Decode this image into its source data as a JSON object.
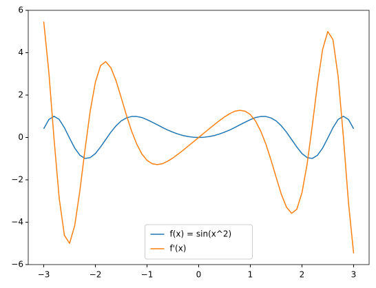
{
  "chart_data": {
    "type": "line",
    "x": [
      -3.0,
      -2.9,
      -2.8,
      -2.7,
      -2.6,
      -2.5,
      -2.4,
      -2.3,
      -2.2,
      -2.1,
      -2.0,
      -1.9,
      -1.8,
      -1.7,
      -1.6,
      -1.5,
      -1.4,
      -1.3,
      -1.2,
      -1.1,
      -1.0,
      -0.9,
      -0.8,
      -0.7,
      -0.6,
      -0.5,
      -0.4,
      -0.3,
      -0.2,
      -0.1,
      0,
      0.1,
      0.2,
      0.3,
      0.4,
      0.5,
      0.6,
      0.7,
      0.8,
      0.9,
      1.0,
      1.1,
      1.2,
      1.3,
      1.4,
      1.5,
      1.6,
      1.7,
      1.8,
      1.9,
      2.0,
      2.1,
      2.2,
      2.3,
      2.4,
      2.5,
      2.6,
      2.7,
      2.8,
      2.9,
      3.0
    ],
    "series": [
      {
        "name": "f(x) = sin(x^2)",
        "color": "#1f77b4",
        "values": [
          0.41,
          0.85,
          1.0,
          0.85,
          0.46,
          -0.03,
          -0.5,
          -0.84,
          -0.99,
          -0.95,
          -0.76,
          -0.45,
          -0.1,
          0.25,
          0.55,
          0.78,
          0.92,
          0.99,
          0.99,
          0.94,
          0.84,
          0.72,
          0.6,
          0.47,
          0.35,
          0.25,
          0.16,
          0.09,
          0.04,
          0.01,
          0,
          0.01,
          0.04,
          0.09,
          0.16,
          0.25,
          0.35,
          0.47,
          0.6,
          0.72,
          0.84,
          0.94,
          0.99,
          0.99,
          0.92,
          0.78,
          0.55,
          0.25,
          -0.1,
          -0.45,
          -0.76,
          -0.95,
          -0.99,
          -0.84,
          -0.5,
          -0.03,
          0.46,
          0.85,
          1.0,
          0.85,
          0.41
        ]
      },
      {
        "name": "f'(x)",
        "color": "#ff7f0e",
        "values": [
          5.47,
          3.06,
          -0.08,
          -2.88,
          -4.62,
          -5.0,
          -4.16,
          -2.51,
          -0.56,
          1.25,
          2.61,
          3.39,
          3.58,
          3.29,
          2.68,
          1.88,
          1.06,
          0.31,
          -0.31,
          -0.78,
          -1.08,
          -1.24,
          -1.28,
          -1.24,
          -1.12,
          -0.97,
          -0.79,
          -0.6,
          -0.4,
          -0.2,
          0,
          0.2,
          0.4,
          0.6,
          0.79,
          0.97,
          1.12,
          1.24,
          1.28,
          1.24,
          1.08,
          0.78,
          0.31,
          -0.31,
          -1.06,
          -1.88,
          -2.68,
          -3.29,
          -3.58,
          -3.39,
          -2.61,
          -1.25,
          0.56,
          2.51,
          4.16,
          5.0,
          4.62,
          2.88,
          0.08,
          -3.06,
          -5.47
        ]
      }
    ],
    "xlim": [
      -3.3,
      3.3
    ],
    "ylim": [
      -6,
      6
    ],
    "xticks": [
      {
        "value": -3,
        "label": "−3"
      },
      {
        "value": -2,
        "label": "−2"
      },
      {
        "value": -1,
        "label": "−1"
      },
      0,
      1,
      2,
      3
    ],
    "yticks": [
      {
        "value": -6,
        "label": "−6"
      },
      {
        "value": -4,
        "label": "−4"
      },
      {
        "value": -2,
        "label": "−2"
      },
      0,
      2,
      4,
      6
    ],
    "grid": false,
    "legend": "lower center"
  }
}
